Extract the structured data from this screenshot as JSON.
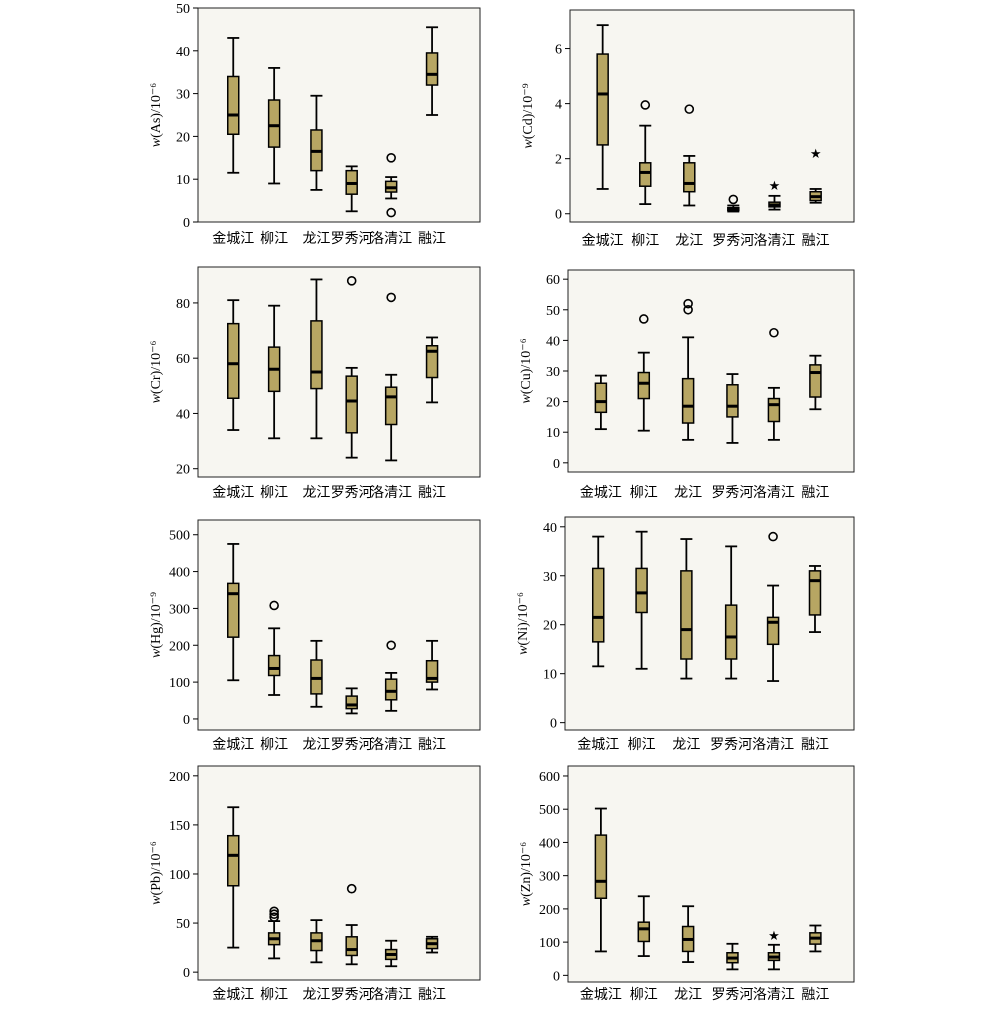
{
  "colors": {
    "box_fill": "#b7a663",
    "plot_bg": "#f7f6f1",
    "axis": "#000000"
  },
  "chart_data": [
    {
      "type": "box",
      "ylabel": "w(As)/10⁻⁶",
      "ylim": [
        0,
        50
      ],
      "yticks": [
        0,
        10,
        20,
        30,
        40,
        50
      ],
      "categories": [
        "金城江",
        "柳江",
        "龙江",
        "罗秀河",
        "洛清江",
        "融江"
      ],
      "boxes": [
        {
          "min": 11.5,
          "q1": 20.5,
          "median": 25,
          "q3": 34,
          "max": 43,
          "outliers": [],
          "extremes": []
        },
        {
          "min": 9,
          "q1": 17.5,
          "median": 22.5,
          "q3": 28.5,
          "max": 36,
          "outliers": [],
          "extremes": []
        },
        {
          "min": 7.5,
          "q1": 12,
          "median": 16.5,
          "q3": 21.5,
          "max": 29.5,
          "outliers": [],
          "extremes": []
        },
        {
          "min": 2.5,
          "q1": 6.5,
          "median": 9,
          "q3": 12,
          "max": 13,
          "outliers": [],
          "extremes": []
        },
        {
          "min": 5.5,
          "q1": 7,
          "median": 8,
          "q3": 9.5,
          "max": 10.5,
          "outliers": [
            15,
            2.2
          ],
          "extremes": []
        },
        {
          "min": 25,
          "q1": 32,
          "median": 34.5,
          "q3": 39.5,
          "max": 45.5,
          "outliers": [],
          "extremes": []
        }
      ]
    },
    {
      "type": "box",
      "ylabel": "w(Cd)/10⁻⁹",
      "ylim": [
        -0.3,
        7.4
      ],
      "yticks": [
        0,
        2,
        4,
        6
      ],
      "categories": [
        "金城江",
        "柳江",
        "龙江",
        "罗秀河",
        "洛清江",
        "融江"
      ],
      "boxes": [
        {
          "min": 0.9,
          "q1": 2.5,
          "median": 4.35,
          "q3": 5.8,
          "max": 6.85,
          "outliers": [],
          "extremes": []
        },
        {
          "min": 0.35,
          "q1": 1.0,
          "median": 1.5,
          "q3": 1.85,
          "max": 3.2,
          "outliers": [
            3.95
          ],
          "extremes": []
        },
        {
          "min": 0.3,
          "q1": 0.8,
          "median": 1.1,
          "q3": 1.85,
          "max": 2.1,
          "outliers": [
            3.8
          ],
          "extremes": []
        },
        {
          "min": 0.08,
          "q1": 0.12,
          "median": 0.17,
          "q3": 0.22,
          "max": 0.3,
          "outliers": [
            0.52
          ],
          "extremes": []
        },
        {
          "min": 0.15,
          "q1": 0.25,
          "median": 0.32,
          "q3": 0.42,
          "max": 0.65,
          "outliers": [],
          "extremes": [
            1.05
          ]
        },
        {
          "min": 0.4,
          "q1": 0.48,
          "median": 0.62,
          "q3": 0.8,
          "max": 0.9,
          "outliers": [],
          "extremes": [
            2.2
          ]
        }
      ]
    },
    {
      "type": "box",
      "ylabel": "w(Cr)/10⁻⁶",
      "ylim": [
        17,
        93
      ],
      "yticks": [
        20,
        40,
        60,
        80
      ],
      "categories": [
        "金城江",
        "柳江",
        "龙江",
        "罗秀河",
        "洛清江",
        "融江"
      ],
      "boxes": [
        {
          "min": 34,
          "q1": 45.5,
          "median": 58,
          "q3": 72.5,
          "max": 81,
          "outliers": [],
          "extremes": []
        },
        {
          "min": 31,
          "q1": 48,
          "median": 56,
          "q3": 64,
          "max": 79,
          "outliers": [],
          "extremes": []
        },
        {
          "min": 31,
          "q1": 49,
          "median": 55,
          "q3": 73.5,
          "max": 88.5,
          "outliers": [],
          "extremes": []
        },
        {
          "min": 24,
          "q1": 33,
          "median": 44.5,
          "q3": 53.5,
          "max": 56.5,
          "outliers": [
            88
          ],
          "extremes": []
        },
        {
          "min": 23,
          "q1": 36,
          "median": 46,
          "q3": 49.5,
          "max": 54,
          "outliers": [
            82
          ],
          "extremes": []
        },
        {
          "min": 44,
          "q1": 53,
          "median": 62.5,
          "q3": 64.5,
          "max": 67.5,
          "outliers": [],
          "extremes": []
        }
      ]
    },
    {
      "type": "box",
      "ylabel": "w(Cu)/10⁻⁶",
      "ylim": [
        -3,
        63
      ],
      "yticks": [
        0,
        10,
        20,
        30,
        40,
        50,
        60
      ],
      "categories": [
        "金城江",
        "柳江",
        "龙江",
        "罗秀河",
        "洛清江",
        "融江"
      ],
      "boxes": [
        {
          "min": 11,
          "q1": 16.5,
          "median": 20,
          "q3": 26,
          "max": 28.5,
          "outliers": [],
          "extremes": []
        },
        {
          "min": 10.5,
          "q1": 21,
          "median": 26,
          "q3": 29.5,
          "max": 36,
          "outliers": [
            47
          ],
          "extremes": []
        },
        {
          "min": 7.5,
          "q1": 13,
          "median": 18.5,
          "q3": 27.5,
          "max": 41,
          "outliers": [
            50,
            52
          ],
          "extremes": []
        },
        {
          "min": 6.5,
          "q1": 15,
          "median": 18.5,
          "q3": 25.5,
          "max": 29,
          "outliers": [],
          "extremes": []
        },
        {
          "min": 7.5,
          "q1": 13.5,
          "median": 19,
          "q3": 21,
          "max": 24.5,
          "outliers": [
            42.5
          ],
          "extremes": []
        },
        {
          "min": 17.5,
          "q1": 21.5,
          "median": 29.5,
          "q3": 32,
          "max": 35,
          "outliers": [],
          "extremes": []
        }
      ]
    },
    {
      "type": "box",
      "ylabel": "w(Hg)/10⁻⁹",
      "ylim": [
        -30,
        540
      ],
      "yticks": [
        0,
        100,
        200,
        300,
        400,
        500
      ],
      "categories": [
        "金城江",
        "柳江",
        "龙江",
        "罗秀河",
        "洛清江",
        "融江"
      ],
      "boxes": [
        {
          "min": 105,
          "q1": 222,
          "median": 340,
          "q3": 368,
          "max": 475,
          "outliers": [],
          "extremes": []
        },
        {
          "min": 65,
          "q1": 118,
          "median": 137,
          "q3": 172,
          "max": 246,
          "outliers": [
            308
          ],
          "extremes": []
        },
        {
          "min": 33,
          "q1": 68,
          "median": 110,
          "q3": 160,
          "max": 212,
          "outliers": [],
          "extremes": []
        },
        {
          "min": 15,
          "q1": 28,
          "median": 38,
          "q3": 62,
          "max": 83,
          "outliers": [],
          "extremes": []
        },
        {
          "min": 22,
          "q1": 52,
          "median": 75,
          "q3": 108,
          "max": 125,
          "outliers": [
            200
          ],
          "extremes": []
        },
        {
          "min": 80,
          "q1": 100,
          "median": 110,
          "q3": 158,
          "max": 212,
          "outliers": [],
          "extremes": []
        }
      ]
    },
    {
      "type": "box",
      "ylabel": "w(Ni)/10⁻⁶",
      "ylim": [
        -1.5,
        42
      ],
      "yticks": [
        0,
        10,
        20,
        30,
        40
      ],
      "categories": [
        "金城江",
        "柳江",
        "龙江",
        "罗秀河",
        "洛清江",
        "融江"
      ],
      "boxes": [
        {
          "min": 11.5,
          "q1": 16.5,
          "median": 21.5,
          "q3": 31.5,
          "max": 38,
          "outliers": [],
          "extremes": []
        },
        {
          "min": 11,
          "q1": 22.5,
          "median": 26.5,
          "q3": 31.5,
          "max": 39,
          "outliers": [],
          "extremes": []
        },
        {
          "min": 9,
          "q1": 13,
          "median": 19,
          "q3": 31,
          "max": 37.5,
          "outliers": [],
          "extremes": []
        },
        {
          "min": 9,
          "q1": 13,
          "median": 17.5,
          "q3": 24,
          "max": 36,
          "outliers": [],
          "extremes": []
        },
        {
          "min": 8.5,
          "q1": 16,
          "median": 20.5,
          "q3": 21.5,
          "max": 28,
          "outliers": [
            38
          ],
          "extremes": []
        },
        {
          "min": 18.5,
          "q1": 22,
          "median": 29,
          "q3": 31,
          "max": 32,
          "outliers": [],
          "extremes": []
        }
      ]
    },
    {
      "type": "box",
      "ylabel": "w(Pb)/10⁻⁶",
      "ylim": [
        -8,
        210
      ],
      "yticks": [
        0,
        50,
        100,
        150,
        200
      ],
      "categories": [
        "金城江",
        "柳江",
        "龙江",
        "罗秀河",
        "洛清江",
        "融江"
      ],
      "boxes": [
        {
          "min": 25,
          "q1": 88,
          "median": 119,
          "q3": 139,
          "max": 168,
          "outliers": [],
          "extremes": []
        },
        {
          "min": 14,
          "q1": 28,
          "median": 34,
          "q3": 40,
          "max": 52,
          "outliers": [
            56,
            59,
            62
          ],
          "extremes": []
        },
        {
          "min": 10,
          "q1": 22,
          "median": 32,
          "q3": 40,
          "max": 53,
          "outliers": [],
          "extremes": []
        },
        {
          "min": 8,
          "q1": 17,
          "median": 23,
          "q3": 36,
          "max": 48,
          "outliers": [
            85
          ],
          "extremes": []
        },
        {
          "min": 6,
          "q1": 13,
          "median": 18,
          "q3": 23,
          "max": 32,
          "outliers": [],
          "extremes": []
        },
        {
          "min": 20,
          "q1": 24,
          "median": 29,
          "q3": 34,
          "max": 36,
          "outliers": [],
          "extremes": []
        }
      ]
    },
    {
      "type": "box",
      "ylabel": "w(Zn)/10⁻⁶",
      "ylim": [
        -20,
        630
      ],
      "yticks": [
        0,
        100,
        200,
        300,
        400,
        500,
        600
      ],
      "categories": [
        "金城江",
        "柳江",
        "龙江",
        "罗秀河",
        "洛清江",
        "融江"
      ],
      "boxes": [
        {
          "min": 72,
          "q1": 232,
          "median": 283,
          "q3": 422,
          "max": 502,
          "outliers": [],
          "extremes": []
        },
        {
          "min": 58,
          "q1": 102,
          "median": 140,
          "q3": 160,
          "max": 238,
          "outliers": [],
          "extremes": []
        },
        {
          "min": 40,
          "q1": 72,
          "median": 108,
          "q3": 147,
          "max": 208,
          "outliers": [],
          "extremes": []
        },
        {
          "min": 18,
          "q1": 38,
          "median": 52,
          "q3": 68,
          "max": 95,
          "outliers": [],
          "extremes": []
        },
        {
          "min": 18,
          "q1": 45,
          "median": 55,
          "q3": 68,
          "max": 92,
          "outliers": [],
          "extremes": [
            122
          ]
        },
        {
          "min": 72,
          "q1": 94,
          "median": 112,
          "q3": 128,
          "max": 150,
          "outliers": [],
          "extremes": []
        }
      ]
    }
  ]
}
